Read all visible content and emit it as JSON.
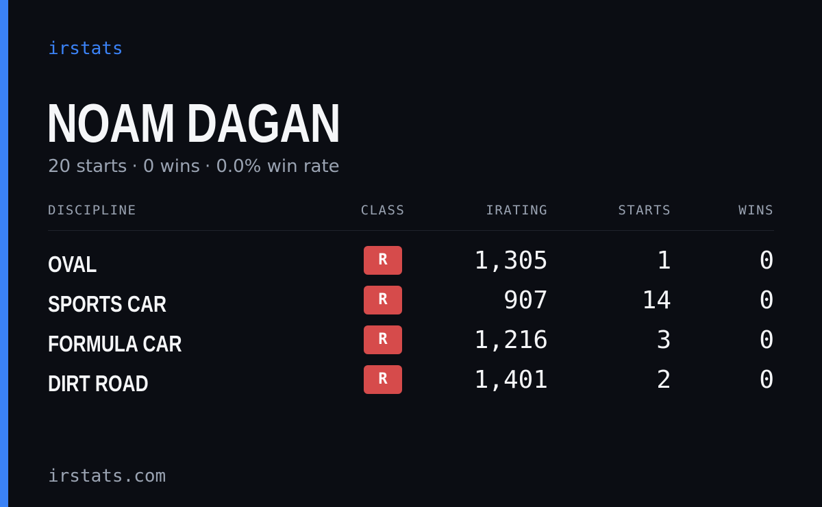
{
  "brand": "irstats",
  "driver": {
    "name": "NOAM DAGAN",
    "starts": "20 starts",
    "wins": "0 wins",
    "win_rate": "0.0% win rate",
    "separator": "·"
  },
  "table": {
    "headers": {
      "discipline": "DISCIPLINE",
      "class": "CLASS",
      "irating": "IRATING",
      "starts": "STARTS",
      "wins": "WINS"
    },
    "rows": [
      {
        "discipline": "OVAL",
        "class": "R",
        "irating": "1,305",
        "starts": "1",
        "wins": "0"
      },
      {
        "discipline": "SPORTS CAR",
        "class": "R",
        "irating": "907",
        "starts": "14",
        "wins": "0"
      },
      {
        "discipline": "FORMULA CAR",
        "class": "R",
        "irating": "1,216",
        "starts": "3",
        "wins": "0"
      },
      {
        "discipline": "DIRT ROAD",
        "class": "R",
        "irating": "1,401",
        "starts": "2",
        "wins": "0"
      }
    ]
  },
  "footer": "irstats.com",
  "colors": {
    "accent": "#3b82f6",
    "background": "#0b0d13",
    "class_badge": "#d64b4b",
    "muted_text": "#9aa3b2",
    "primary_text": "#f5f6f8"
  }
}
